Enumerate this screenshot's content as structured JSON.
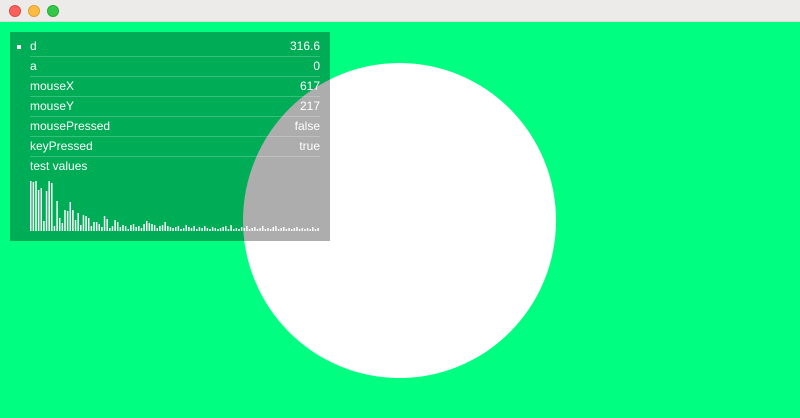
{
  "window": {
    "buttons": [
      "close",
      "minimize",
      "zoom"
    ]
  },
  "colors": {
    "background": "#00ff80",
    "circle": "#ffffff",
    "panel": "rgba(0,0,0,0.32)"
  },
  "debug_panel": {
    "rows": [
      {
        "label": "d",
        "value": "316.6"
      },
      {
        "label": "a",
        "value": "0"
      },
      {
        "label": "mouseX",
        "value": "617"
      },
      {
        "label": "mouseY",
        "value": "217"
      },
      {
        "label": "mousePressed",
        "value": "false"
      },
      {
        "label": "keyPressed",
        "value": "true"
      }
    ],
    "graph_label": "test values",
    "graph_values": [
      1.0,
      0.98,
      1.0,
      0.82,
      0.86,
      0.2,
      0.8,
      1.0,
      0.96,
      0.1,
      0.6,
      0.26,
      0.16,
      0.42,
      0.4,
      0.58,
      0.42,
      0.22,
      0.36,
      0.12,
      0.32,
      0.3,
      0.26,
      0.1,
      0.18,
      0.18,
      0.14,
      0.08,
      0.3,
      0.24,
      0.06,
      0.1,
      0.22,
      0.18,
      0.08,
      0.12,
      0.1,
      0.04,
      0.12,
      0.14,
      0.08,
      0.1,
      0.06,
      0.14,
      0.2,
      0.16,
      0.14,
      0.12,
      0.06,
      0.1,
      0.12,
      0.18,
      0.1,
      0.08,
      0.06,
      0.08,
      0.1,
      0.04,
      0.06,
      0.12,
      0.08,
      0.06,
      0.1,
      0.04,
      0.08,
      0.06,
      0.1,
      0.06,
      0.04,
      0.08,
      0.06,
      0.04,
      0.06,
      0.08,
      0.1,
      0.04,
      0.12,
      0.04,
      0.06,
      0.04,
      0.08,
      0.06,
      0.1,
      0.04,
      0.06,
      0.08,
      0.04,
      0.06,
      0.1,
      0.04,
      0.06,
      0.04,
      0.08,
      0.1,
      0.04,
      0.06,
      0.08,
      0.04,
      0.06,
      0.04,
      0.06,
      0.08,
      0.04,
      0.06,
      0.04,
      0.06,
      0.04,
      0.08,
      0.04,
      0.06
    ]
  }
}
